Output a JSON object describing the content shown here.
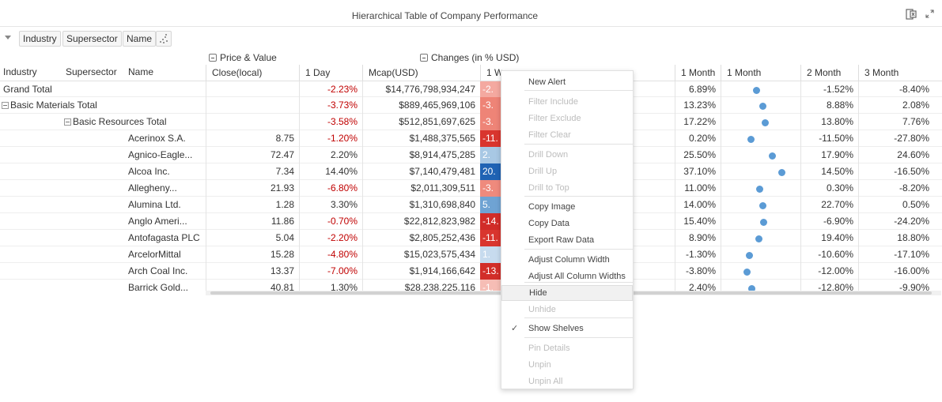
{
  "title": "Hierarchical Table of Company Performance",
  "shelves": [
    "Industry",
    "Supersector",
    "Name"
  ],
  "groups": {
    "price_value": "Price & Value",
    "changes": "Changes (in % USD)"
  },
  "row_headers": [
    "Industry",
    "Supersector",
    "Name"
  ],
  "columns": {
    "close": "Close(local)",
    "day": "1 Day",
    "mcap": "Mcap(USD)",
    "week": "1 Week",
    "month": "1 Month",
    "month_dot": "1 Month",
    "two_month": "2 Month",
    "three_month": "3 Month"
  },
  "rows": [
    {
      "name": "Grand Total",
      "level": 0,
      "box": false,
      "close": "",
      "day": "-2.23%",
      "mcap": "$14,776,798,934,247",
      "week": "-2.",
      "heat": "#f4a9a0",
      "month": "6.89%",
      "dot": 0.62,
      "m2": "-1.52%",
      "m3": "-8.40%"
    },
    {
      "name": "Basic Materials Total",
      "level": 0,
      "box": true,
      "close": "",
      "day": "-3.73%",
      "mcap": "$889,465,969,106",
      "week": "-3.",
      "heat": "#ee8477",
      "month": "13.23%",
      "dot": 0.68,
      "m2": "8.88%",
      "m3": "2.08%"
    },
    {
      "name": "Basic Resources Total",
      "level": 1,
      "box": true,
      "close": "",
      "day": "-3.58%",
      "mcap": "$512,851,697,625",
      "week": "-3.",
      "heat": "#ee8477",
      "month": "17.22%",
      "dot": 0.71,
      "m2": "13.80%",
      "m3": "7.76%"
    },
    {
      "name": "Acerinox S.A.",
      "level": 2,
      "box": false,
      "close": "8.75",
      "day": "-1.20%",
      "mcap": "$1,488,375,565",
      "week": "-11.",
      "heat": "#d9352e",
      "month": "0.20%",
      "dot": 0.56,
      "m2": "-11.50%",
      "m3": "-27.80%"
    },
    {
      "name": "Agnico-Eagle...",
      "level": 2,
      "box": false,
      "close": "72.47",
      "day": "2.20%",
      "mcap": "$8,914,475,285",
      "week": "2.",
      "heat": "#a8c8e4",
      "month": "25.50%",
      "dot": 0.78,
      "m2": "17.90%",
      "m3": "24.60%"
    },
    {
      "name": "Alcoa Inc.",
      "level": 2,
      "box": false,
      "close": "7.34",
      "day": "14.40%",
      "mcap": "$7,140,479,481",
      "week": "20.",
      "heat": "#1f63b4",
      "month": "37.10%",
      "dot": 0.88,
      "m2": "14.50%",
      "m3": "-16.50%"
    },
    {
      "name": "Allegheny...",
      "level": 2,
      "box": false,
      "close": "21.93",
      "day": "-6.80%",
      "mcap": "$2,011,309,511",
      "week": "-3.",
      "heat": "#ef8a7d",
      "month": "11.00%",
      "dot": 0.65,
      "m2": "0.30%",
      "m3": "-8.20%"
    },
    {
      "name": "Alumina Ltd.",
      "level": 2,
      "box": false,
      "close": "1.28",
      "day": "3.30%",
      "mcap": "$1,310,698,840",
      "week": "5.",
      "heat": "#6fa3d3",
      "month": "14.00%",
      "dot": 0.68,
      "m2": "22.70%",
      "m3": "0.50%"
    },
    {
      "name": "Anglo Ameri...",
      "level": 2,
      "box": false,
      "close": "11.86",
      "day": "-0.70%",
      "mcap": "$22,812,823,982",
      "week": "-14.",
      "heat": "#d12c28",
      "month": "15.40%",
      "dot": 0.69,
      "m2": "-6.90%",
      "m3": "-24.20%"
    },
    {
      "name": "Antofagasta PLC",
      "level": 2,
      "box": false,
      "close": "5.04",
      "day": "-2.20%",
      "mcap": "$2,805,252,436",
      "week": "-11.",
      "heat": "#d9352e",
      "month": "8.90%",
      "dot": 0.64,
      "m2": "19.40%",
      "m3": "18.80%"
    },
    {
      "name": "ArcelorMittal",
      "level": 2,
      "box": false,
      "close": "15.28",
      "day": "-4.80%",
      "mcap": "$15,023,575,434",
      "week": "1.",
      "heat": "#c7dbee",
      "month": "-1.30%",
      "dot": 0.54,
      "m2": "-10.60%",
      "m3": "-17.10%"
    },
    {
      "name": "Arch Coal Inc.",
      "level": 2,
      "box": false,
      "close": "13.37",
      "day": "-7.00%",
      "mcap": "$1,914,166,642",
      "week": "-13.",
      "heat": "#d22e29",
      "month": "-3.80%",
      "dot": 0.52,
      "m2": "-12.00%",
      "m3": "-16.00%"
    },
    {
      "name": "Barrick Gold...",
      "level": 2,
      "box": false,
      "close": "40.81",
      "day": "1.30%",
      "mcap": "$28,238,225,116",
      "week": "-1.",
      "heat": "#f6bdb5",
      "month": "2.40%",
      "dot": 0.57,
      "m2": "-12.80%",
      "m3": "-9.90%"
    }
  ],
  "menu": [
    {
      "label": "New Alert",
      "disabled": false
    },
    {
      "label": "Filter Include",
      "disabled": true
    },
    {
      "label": "Filter Exclude",
      "disabled": true
    },
    {
      "label": "Filter Clear",
      "disabled": true
    },
    {
      "label": "Drill Down",
      "disabled": true
    },
    {
      "label": "Drill Up",
      "disabled": true
    },
    {
      "label": "Drill to Top",
      "disabled": true
    },
    {
      "label": "Copy Image",
      "disabled": false
    },
    {
      "label": "Copy Data",
      "disabled": false
    },
    {
      "label": "Export Raw Data",
      "disabled": false
    },
    {
      "label": "Adjust Column Width",
      "disabled": false
    },
    {
      "label": "Adjust All Column Widths",
      "disabled": false
    },
    {
      "label": "Hide",
      "disabled": false,
      "highlighted": true
    },
    {
      "label": "Unhide",
      "disabled": true
    },
    {
      "label": "Show Shelves",
      "disabled": false,
      "checked": true
    },
    {
      "label": "Pin Details",
      "disabled": true
    },
    {
      "label": "Unpin",
      "disabled": true
    },
    {
      "label": "Unpin All",
      "disabled": true
    }
  ]
}
